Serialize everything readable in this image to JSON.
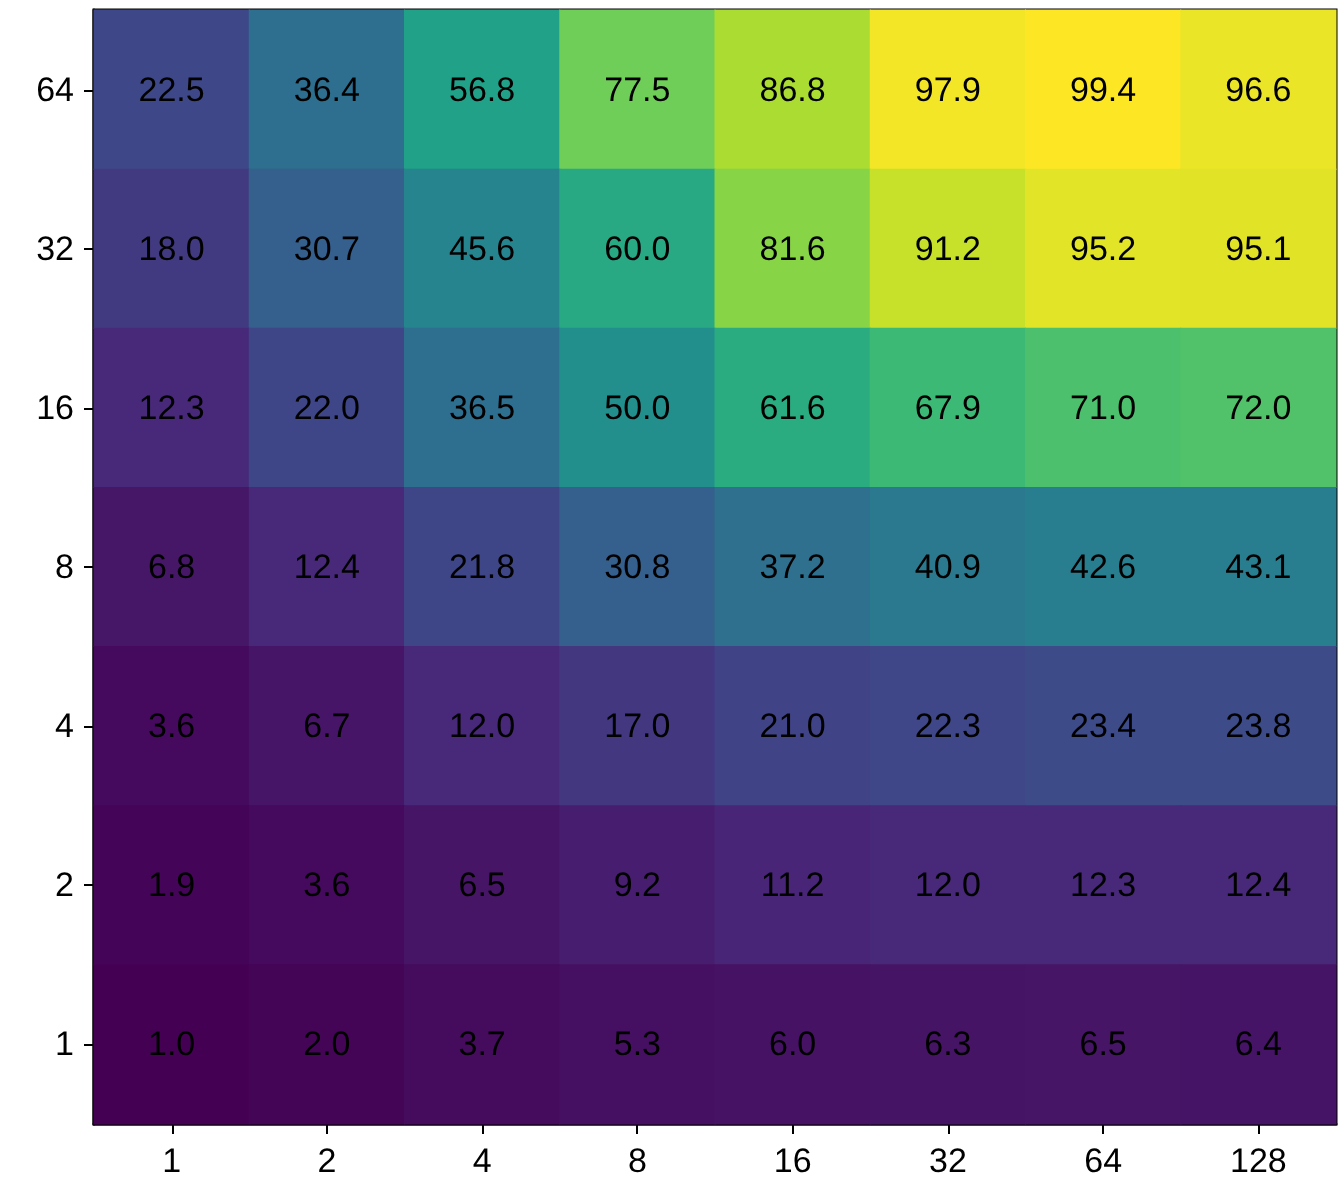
{
  "chart_data": {
    "type": "heatmap",
    "categories": [
      "1",
      "2",
      "4",
      "8",
      "16",
      "32",
      "64",
      "128"
    ],
    "y_categories": [
      "64",
      "32",
      "16",
      "8",
      "4",
      "2",
      "1"
    ],
    "cells": [
      [
        22.5,
        36.4,
        56.8,
        77.5,
        86.8,
        97.9,
        99.4,
        96.6
      ],
      [
        18.0,
        30.7,
        45.6,
        60.0,
        81.6,
        91.2,
        95.2,
        95.1
      ],
      [
        12.3,
        22.0,
        36.5,
        50.0,
        61.6,
        67.9,
        71.0,
        72.0
      ],
      [
        6.8,
        12.4,
        21.8,
        30.8,
        37.2,
        40.9,
        42.6,
        43.1
      ],
      [
        3.6,
        6.7,
        12.0,
        17.0,
        21.0,
        22.3,
        23.4,
        23.8
      ],
      [
        1.9,
        3.6,
        6.5,
        9.2,
        11.2,
        12.0,
        12.3,
        12.4
      ],
      [
        1.0,
        2.0,
        3.7,
        5.3,
        6.0,
        6.3,
        6.5,
        6.4
      ]
    ],
    "cell_labels": [
      [
        "22.5",
        "36.4",
        "56.8",
        "77.5",
        "86.8",
        "97.9",
        "99.4",
        "96.6"
      ],
      [
        "18.0",
        "30.7",
        "45.6",
        "60.0",
        "81.6",
        "91.2",
        "95.2",
        "95.1"
      ],
      [
        "12.3",
        "22.0",
        "36.5",
        "50.0",
        "61.6",
        "67.9",
        "71.0",
        "72.0"
      ],
      [
        "6.8",
        "12.4",
        "21.8",
        "30.8",
        "37.2",
        "40.9",
        "42.6",
        "43.1"
      ],
      [
        "3.6",
        "6.7",
        "12.0",
        "17.0",
        "21.0",
        "22.3",
        "23.4",
        "23.8"
      ],
      [
        "1.9",
        "3.6",
        "6.5",
        "9.2",
        "11.2",
        "12.0",
        "12.3",
        "12.4"
      ],
      [
        "1.0",
        "2.0",
        "3.7",
        "5.3",
        "6.0",
        "6.3",
        "6.5",
        "6.4"
      ]
    ]
  }
}
